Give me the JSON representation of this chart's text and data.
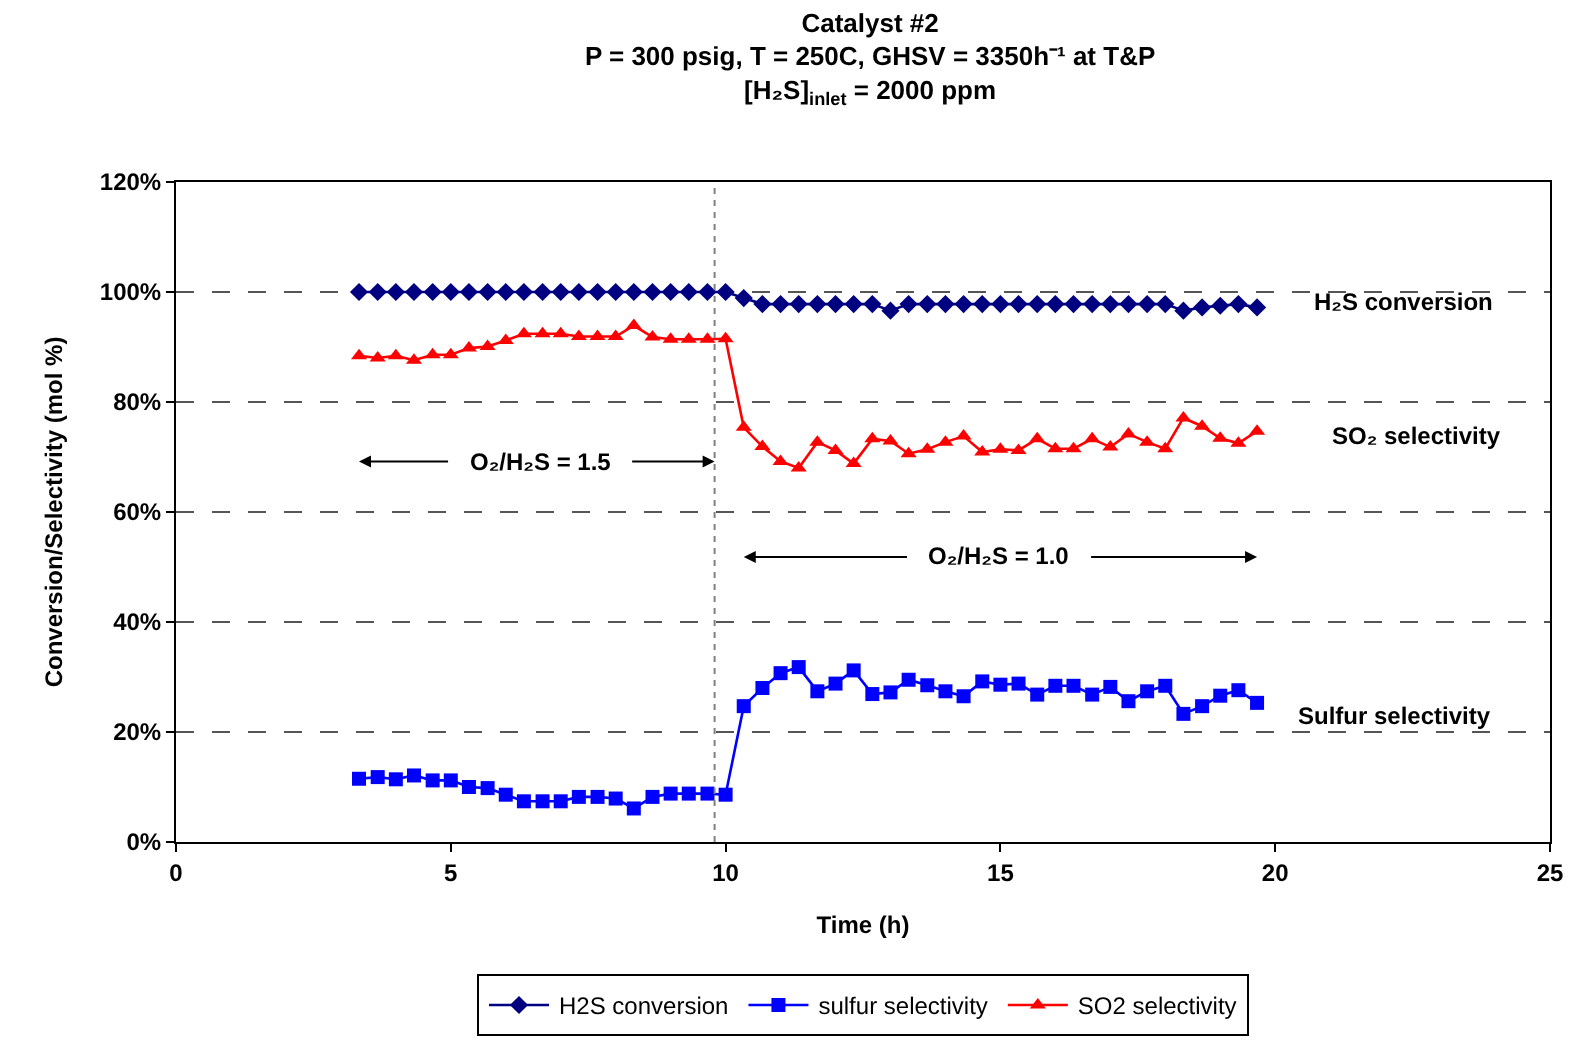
{
  "chart_data": {
    "type": "line",
    "title": "Catalyst #2\nP = 300 psig, T = 250C, GHSV = 3350h⁻¹ at T&P\n[H₂S]$_{inlet}$ = 2000 ppm",
    "xlabel": "Time (h)",
    "ylabel": "Conversion/Selectivity (mol %)",
    "x": [
      3.33,
      3.67,
      4,
      4.33,
      4.67,
      5,
      5.33,
      5.67,
      6,
      6.33,
      6.67,
      7,
      7.33,
      7.67,
      8,
      8.33,
      8.67,
      9,
      9.33,
      9.67,
      10,
      10.33,
      10.67,
      11,
      11.33,
      11.67,
      12,
      12.33,
      12.67,
      13,
      13.33,
      13.67,
      14,
      14.33,
      14.67,
      15,
      15.33,
      15.67,
      16,
      16.33,
      16.67,
      17,
      17.33,
      17.67,
      18,
      18.33,
      18.67,
      19,
      19.33,
      19.67
    ],
    "series": [
      {
        "name": "H2S conversion",
        "color": "#000080",
        "marker": "diamond",
        "values": [
          100,
          100,
          100,
          100,
          100,
          100,
          100,
          100,
          100,
          100,
          100,
          100,
          100,
          100,
          100,
          100,
          100,
          100,
          100,
          100,
          100,
          98.9,
          97.8,
          97.8,
          97.8,
          97.8,
          97.8,
          97.8,
          97.8,
          96.6,
          97.8,
          97.8,
          97.8,
          97.8,
          97.8,
          97.8,
          97.8,
          97.8,
          97.8,
          97.8,
          97.8,
          97.8,
          97.8,
          97.8,
          97.8,
          96.6,
          97.2,
          97.5,
          97.8,
          97.2
        ]
      },
      {
        "name": "sulfur selectivity",
        "color": "#0000ff",
        "marker": "square",
        "values": [
          11.5,
          11.8,
          11.4,
          12.1,
          11.2,
          11.2,
          10.0,
          9.8,
          8.6,
          7.4,
          7.4,
          7.4,
          8.2,
          8.2,
          7.9,
          6.1,
          8.2,
          8.8,
          8.8,
          8.8,
          8.6,
          24.7,
          28.0,
          30.7,
          31.8,
          27.4,
          28.8,
          31.2,
          26.9,
          27.2,
          29.5,
          28.5,
          27.4,
          26.5,
          29.2,
          28.6,
          28.8,
          26.8,
          28.4,
          28.4,
          26.8,
          28.2,
          25.6,
          27.4,
          28.4,
          23.3,
          24.7,
          26.6,
          27.6,
          25.3
        ]
      },
      {
        "name": "SO2 selectivity",
        "color": "#ff0000",
        "marker": "triangle",
        "values": [
          88.4,
          88.0,
          88.4,
          87.6,
          88.6,
          88.6,
          89.8,
          90.1,
          91.2,
          92.4,
          92.4,
          92.4,
          91.9,
          91.9,
          91.9,
          93.9,
          91.8,
          91.4,
          91.4,
          91.4,
          91.5,
          75.4,
          71.9,
          69.2,
          68.0,
          72.7,
          71.2,
          68.8,
          73.3,
          72.9,
          70.6,
          71.4,
          72.7,
          73.8,
          70.9,
          71.4,
          71.2,
          73.3,
          71.5,
          71.5,
          73.3,
          71.8,
          74.2,
          72.7,
          71.5,
          77.1,
          75.6,
          73.4,
          72.5,
          74.7
        ]
      }
    ],
    "xlim": [
      0,
      25
    ],
    "xticks": [
      0,
      5,
      10,
      15,
      20,
      25
    ],
    "ylim": [
      0,
      120
    ],
    "yticks": [
      {
        "value": 0,
        "label": "0%"
      },
      {
        "value": 20,
        "label": "20%"
      },
      {
        "value": 40,
        "label": "40%"
      },
      {
        "value": 60,
        "label": "60%"
      },
      {
        "value": 80,
        "label": "80%"
      },
      {
        "value": 100,
        "label": "100%"
      },
      {
        "value": 120,
        "label": "120%"
      }
    ],
    "ref_lines": [
      {
        "axis": "x",
        "value": 9.8,
        "color": "#808080",
        "line_style": "dotted"
      }
    ],
    "annotations": [
      "H₂S conversion",
      "SO₂ selectivity",
      "Sulfur selectivity",
      {
        "text": "O₂/H₂S = 1.5",
        "x": 9.8,
        "y": 69.2
      },
      "O₂/H₂S = 1.0"
    ],
    "grid": "y",
    "legend": "bottom",
    "line_style": "solid"
  }
}
